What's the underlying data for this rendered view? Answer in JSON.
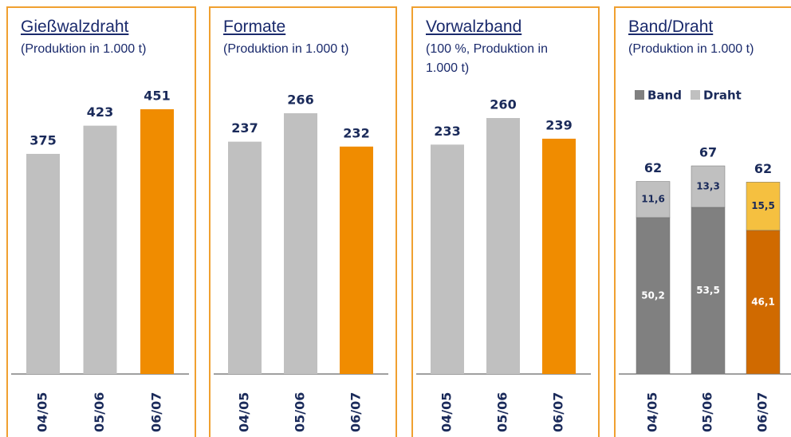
{
  "chart_data": [
    {
      "type": "bar",
      "title": "Gießwalzdraht",
      "subtitle": "(Produktion in 1.000 t)",
      "categories": [
        "04/05",
        "05/06",
        "06/07"
      ],
      "values": [
        375,
        423,
        451
      ],
      "colors": [
        "#c0c0c0",
        "#c0c0c0",
        "#f08c00"
      ]
    },
    {
      "type": "bar",
      "title": "Formate",
      "subtitle": "(Produktion in 1.000 t)",
      "categories": [
        "04/05",
        "05/06",
        "06/07"
      ],
      "values": [
        237,
        266,
        232
      ],
      "colors": [
        "#c0c0c0",
        "#c0c0c0",
        "#f08c00"
      ]
    },
    {
      "type": "bar",
      "title": "Vorwalzband",
      "subtitle": "(100 %, Produktion in 1.000 t)",
      "categories": [
        "04/05",
        "05/06",
        "06/07"
      ],
      "values": [
        233,
        260,
        239
      ],
      "colors": [
        "#c0c0c0",
        "#c0c0c0",
        "#f08c00"
      ]
    },
    {
      "type": "stacked_bar",
      "title": "Band/Draht",
      "subtitle": "(Produktion in 1.000 t)",
      "categories": [
        "04/05",
        "05/06",
        "06/07"
      ],
      "series": [
        {
          "name": "Band",
          "color": "#808080",
          "colors": [
            "#808080",
            "#808080",
            "#d06a00"
          ],
          "values": [
            50.2,
            53.5,
            46.1
          ],
          "value_labels": [
            "50,2",
            "53,5",
            "46,1"
          ]
        },
        {
          "name": "Draht",
          "color": "#c0c0c0",
          "colors": [
            "#c0c0c0",
            "#c0c0c0",
            "#f5c040"
          ],
          "values": [
            11.6,
            13.3,
            15.5
          ],
          "value_labels": [
            "11,6",
            "13,3",
            "15,5"
          ]
        }
      ],
      "totals": [
        62,
        67,
        62
      ]
    }
  ]
}
